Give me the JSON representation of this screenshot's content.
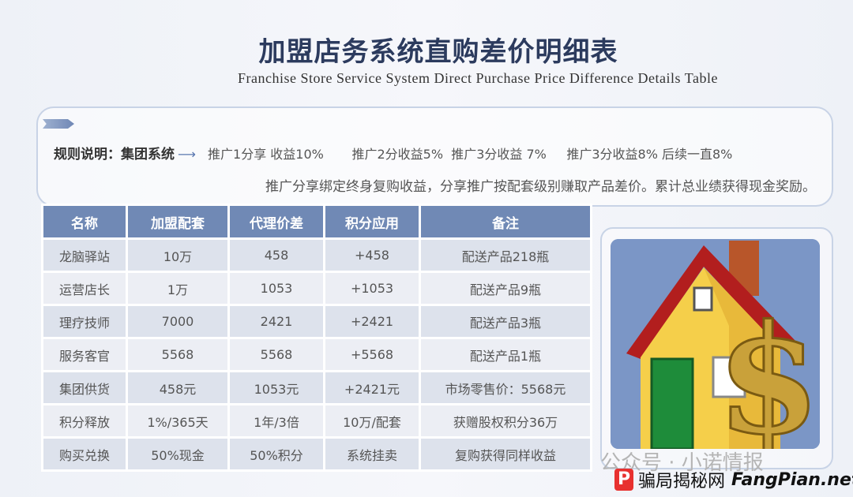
{
  "title": "加盟店务系统直购差价明细表",
  "subtitle": "Franchise Store Service System Direct Purchase Price Difference Details Table",
  "rules": {
    "label": "规则说明：集团系统",
    "arrow": "⟶",
    "items": [
      "推广1分享 收益10%",
      "推广2分收益5%",
      "推广3分收益 7%",
      "推广3分收益8% 后续一直8%"
    ],
    "note": "推广分享绑定终身复购收益，分享推广按配套级别赚取产品差价。累计总业绩获得现金奖励。"
  },
  "table": {
    "headers": [
      "名称",
      "加盟配套",
      "代理价差",
      "积分应用",
      "备注"
    ],
    "rows": [
      [
        "龙脑驿站",
        "10万",
        "458",
        "+458",
        "配送产品218瓶"
      ],
      [
        "运营店长",
        "1万",
        "1053",
        "+1053",
        "配送产品9瓶"
      ],
      [
        "理疗技师",
        "7000",
        "2421",
        "+2421",
        "配送产品3瓶"
      ],
      [
        "服务客官",
        "5568",
        "5568",
        "+5568",
        "配送产品1瓶"
      ],
      [
        "集团供货",
        "458元",
        "1053元",
        "+2421元",
        "市场零售价：5568元"
      ],
      [
        "积分释放",
        "1%/365天",
        "1年/3倍",
        "10万/配套",
        "获赠股权积分36万"
      ],
      [
        "购买兑换",
        "50%现金",
        "50%积分",
        "系统挂卖",
        "复购获得同样收益"
      ]
    ]
  },
  "image": {
    "icon": "house-with-dollar-sign-icon"
  },
  "watermark": "公众号 · 小诺情报",
  "site": {
    "logo": "P",
    "cn": "骗局揭秘网",
    "en": "FangPian.net"
  },
  "colors": {
    "header": "#7089b5",
    "title": "#2c3b5e",
    "row_odd": "#dde2ec",
    "row_even": "#eceef4"
  }
}
